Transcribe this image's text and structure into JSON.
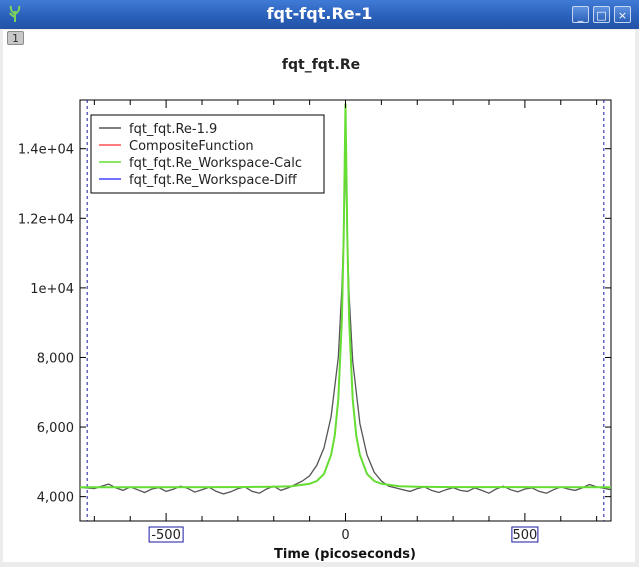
{
  "window": {
    "title": "fqt-fqt.Re-1",
    "buttons": [
      "_",
      "□",
      "×"
    ],
    "tab_index": "1"
  },
  "chart_data": {
    "type": "line",
    "title": "fqt_fqt.Re",
    "xlabel": "Time (picoseconds)",
    "ylabel": "",
    "xlim": [
      -740,
      740
    ],
    "ylim": [
      3300,
      15400
    ],
    "x_ticks": [
      -500,
      0,
      500
    ],
    "x_tick_labels": [
      "-500",
      "0",
      "500"
    ],
    "y_ticks": [
      4000,
      6000,
      8000,
      10000,
      12000,
      14000
    ],
    "y_tick_labels": [
      "4,000",
      "6,000",
      "8,000",
      "1e+04",
      "1.2e+04",
      "1.4e+04"
    ],
    "range_markers_x": [
      -720,
      720
    ],
    "legend_position": "top-left",
    "grid": false,
    "colors": {
      "data": "#555555",
      "fit": "#ff5050",
      "calc": "#66dd33",
      "diff": "#4444ff",
      "marker": "#1a1aa0"
    },
    "series": [
      {
        "name": "fqt_fqt.Re-1.9",
        "color": "#555555",
        "x": [
          -740,
          -700,
          -680,
          -660,
          -640,
          -620,
          -600,
          -580,
          -560,
          -540,
          -520,
          -500,
          -480,
          -460,
          -440,
          -420,
          -400,
          -380,
          -360,
          -340,
          -320,
          -300,
          -280,
          -260,
          -240,
          -220,
          -200,
          -180,
          -160,
          -140,
          -120,
          -100,
          -80,
          -60,
          -40,
          -20,
          -10,
          -5,
          0,
          5,
          10,
          20,
          40,
          60,
          80,
          100,
          120,
          140,
          160,
          180,
          200,
          220,
          240,
          260,
          280,
          300,
          320,
          340,
          360,
          380,
          400,
          420,
          440,
          460,
          480,
          500,
          520,
          540,
          560,
          580,
          600,
          620,
          640,
          660,
          680,
          700,
          740
        ],
        "y": [
          4270,
          4230,
          4300,
          4360,
          4250,
          4180,
          4280,
          4200,
          4120,
          4220,
          4260,
          4150,
          4210,
          4300,
          4240,
          4130,
          4200,
          4270,
          4150,
          4080,
          4140,
          4230,
          4280,
          4150,
          4100,
          4220,
          4300,
          4180,
          4250,
          4350,
          4450,
          4600,
          4900,
          5400,
          6300,
          8000,
          10000,
          11500,
          14200,
          11300,
          9800,
          7900,
          6100,
          5200,
          4700,
          4450,
          4300,
          4250,
          4200,
          4150,
          4230,
          4280,
          4180,
          4120,
          4200,
          4260,
          4180,
          4150,
          4250,
          4180,
          4100,
          4220,
          4300,
          4200,
          4140,
          4220,
          4250,
          4150,
          4100,
          4200,
          4280,
          4220,
          4180,
          4250,
          4350,
          4280,
          4200
        ]
      },
      {
        "name": "CompositeFunction",
        "color": "#ff5050",
        "x": [],
        "y": []
      },
      {
        "name": "fqt_fqt.Re_Workspace-Calc",
        "color": "#66dd33",
        "x": [
          -740,
          -300,
          -200,
          -150,
          -100,
          -80,
          -60,
          -40,
          -30,
          -20,
          -10,
          -5,
          0,
          5,
          10,
          20,
          30,
          40,
          60,
          80,
          100,
          150,
          200,
          300,
          740
        ],
        "y": [
          4270,
          4275,
          4285,
          4300,
          4370,
          4450,
          4650,
          5200,
          5750,
          6800,
          9100,
          11500,
          15300,
          11500,
          9100,
          6800,
          5750,
          5200,
          4650,
          4450,
          4370,
          4300,
          4285,
          4275,
          4270
        ]
      },
      {
        "name": "fqt_fqt.Re_Workspace-Diff",
        "color": "#4444ff",
        "x": [],
        "y": []
      }
    ]
  }
}
